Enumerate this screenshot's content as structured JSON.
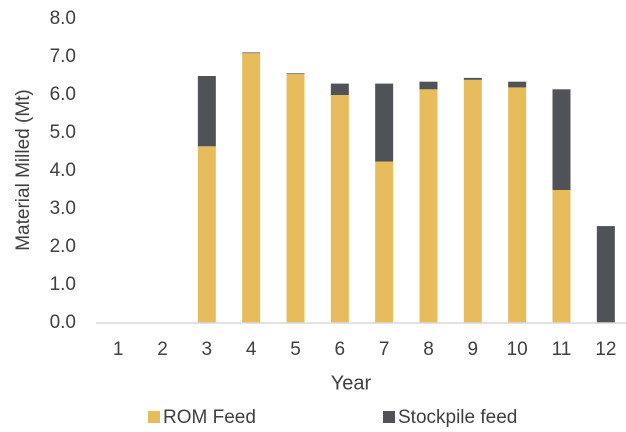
{
  "chart_data": {
    "type": "stacked_bar",
    "y_label": "Material Milled (Mt)",
    "x_label": "Year",
    "categories": [
      "1",
      "2",
      "3",
      "4",
      "5",
      "6",
      "7",
      "8",
      "9",
      "10",
      "11",
      "12"
    ],
    "series": [
      {
        "name": "ROM Feed",
        "color": "#e6bc5c",
        "values": [
          0,
          0,
          4.65,
          7.1,
          6.55,
          6.0,
          4.25,
          6.15,
          6.4,
          6.2,
          3.5,
          0
        ]
      },
      {
        "name": "Stockpile feed",
        "color": "#505257",
        "values": [
          0,
          0,
          1.85,
          0.02,
          0.02,
          0.3,
          2.05,
          0.2,
          0.05,
          0.15,
          2.65,
          2.55
        ]
      }
    ],
    "ylim": [
      0,
      8
    ],
    "yticks": [
      {
        "value": 0,
        "label": "0.0"
      },
      {
        "value": 1,
        "label": "1.0"
      },
      {
        "value": 2,
        "label": "2.0"
      },
      {
        "value": 3,
        "label": "3.0"
      },
      {
        "value": 4,
        "label": "4.0"
      },
      {
        "value": 5,
        "label": "5.0"
      },
      {
        "value": 6,
        "label": "6.0"
      },
      {
        "value": 7,
        "label": "7.0"
      },
      {
        "value": 8,
        "label": "8.0"
      }
    ],
    "grid": false,
    "legend": "bottom"
  }
}
